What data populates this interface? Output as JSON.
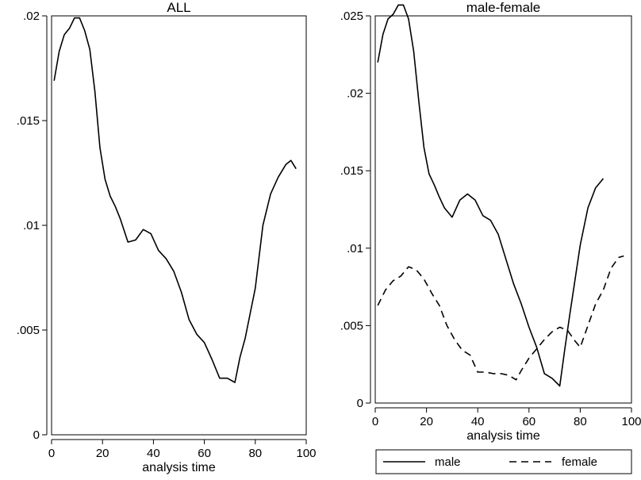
{
  "chart_data": [
    {
      "type": "line",
      "title": "ALL",
      "xlabel": "analysis time",
      "ylabel": "",
      "xlim": [
        0,
        100
      ],
      "ylim": [
        0,
        0.02
      ],
      "xticks": [
        0,
        20,
        40,
        60,
        80,
        100
      ],
      "xtick_labels": [
        "0",
        "20",
        "40",
        "60",
        "80",
        "100"
      ],
      "yticks": [
        0,
        0.005,
        0.01,
        0.015,
        0.02
      ],
      "ytick_labels": [
        "0",
        ".005",
        ".01",
        ".015",
        ".02"
      ],
      "series": [
        {
          "style": "solid",
          "x": [
            1,
            3,
            5,
            7,
            9,
            11,
            13,
            15,
            17,
            19,
            21,
            23,
            25,
            27,
            30,
            33,
            36,
            39,
            42,
            45,
            48,
            51,
            54,
            57,
            60,
            63,
            66,
            69,
            72,
            74,
            76,
            80,
            83,
            86,
            89,
            92,
            94,
            96
          ],
          "y": [
            0.0169,
            0.0183,
            0.0191,
            0.0194,
            0.0199,
            0.0199,
            0.0193,
            0.0184,
            0.0164,
            0.0137,
            0.0122,
            0.0114,
            0.0109,
            0.0103,
            0.0092,
            0.0093,
            0.0098,
            0.0096,
            0.0088,
            0.0084,
            0.0078,
            0.0068,
            0.0055,
            0.0048,
            0.0044,
            0.0036,
            0.0027,
            0.0027,
            0.0025,
            0.0037,
            0.0046,
            0.007,
            0.01,
            0.0115,
            0.0123,
            0.0129,
            0.0131,
            0.0127
          ]
        }
      ]
    },
    {
      "type": "line",
      "title": "male-female",
      "xlabel": "analysis time",
      "ylabel": "",
      "xlim": [
        0,
        100
      ],
      "ylim": [
        0,
        0.025
      ],
      "xticks": [
        0,
        20,
        40,
        60,
        80,
        100
      ],
      "xtick_labels": [
        "0",
        "20",
        "40",
        "60",
        "80",
        "100"
      ],
      "yticks": [
        0,
        0.005,
        0.01,
        0.015,
        0.02,
        0.025
      ],
      "ytick_labels": [
        "0",
        ".005",
        ".01",
        ".015",
        ".02",
        ".025"
      ],
      "legend": "bottom",
      "series": [
        {
          "name": "male",
          "style": "solid",
          "x": [
            1,
            3,
            5,
            7,
            9,
            11,
            13,
            15,
            17,
            19,
            21,
            23,
            25,
            27,
            30,
            33,
            36,
            39,
            42,
            45,
            48,
            51,
            54,
            57,
            60,
            63,
            66,
            69,
            72,
            74,
            76,
            80,
            83,
            86,
            89
          ],
          "y": [
            0.022,
            0.0238,
            0.0248,
            0.0251,
            0.0257,
            0.0257,
            0.0248,
            0.0227,
            0.0195,
            0.0165,
            0.0148,
            0.0141,
            0.0133,
            0.0126,
            0.012,
            0.0131,
            0.0135,
            0.0131,
            0.0121,
            0.0118,
            0.0109,
            0.0093,
            0.0077,
            0.0064,
            0.0049,
            0.0036,
            0.0019,
            0.0016,
            0.0011,
            0.0035,
            0.0058,
            0.0102,
            0.0126,
            0.0139,
            0.0145
          ]
        },
        {
          "name": "female",
          "style": "dashed",
          "x": [
            1,
            4,
            7,
            10,
            13,
            16,
            19,
            22,
            25,
            28,
            31,
            34,
            37,
            40,
            43,
            46,
            49,
            52,
            55,
            57,
            60,
            63,
            66,
            69,
            72,
            75,
            78,
            80,
            83,
            86,
            89,
            92,
            95,
            97
          ],
          "y": [
            0.0063,
            0.0073,
            0.0079,
            0.0082,
            0.0088,
            0.0086,
            0.008,
            0.0071,
            0.0063,
            0.005,
            0.0041,
            0.0034,
            0.0031,
            0.002,
            0.002,
            0.0019,
            0.0019,
            0.0018,
            0.0015,
            0.0021,
            0.0029,
            0.0035,
            0.0041,
            0.0046,
            0.0049,
            0.0047,
            0.004,
            0.0036,
            0.005,
            0.0064,
            0.0073,
            0.0087,
            0.0094,
            0.0095
          ]
        }
      ]
    }
  ]
}
